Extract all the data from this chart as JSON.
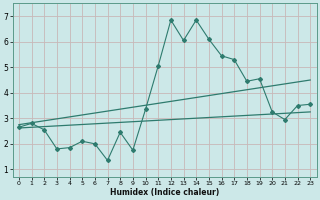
{
  "xlabel": "Humidex (Indice chaleur)",
  "bg_color": "#cce8e8",
  "grid_color": "#c8b8b8",
  "line_color": "#2e7b6e",
  "xlim": [
    -0.5,
    23.5
  ],
  "ylim": [
    0.7,
    7.5
  ],
  "xticks": [
    0,
    1,
    2,
    3,
    4,
    5,
    6,
    7,
    8,
    9,
    10,
    11,
    12,
    13,
    14,
    15,
    16,
    17,
    18,
    19,
    20,
    21,
    22,
    23
  ],
  "yticks": [
    1,
    2,
    3,
    4,
    5,
    6,
    7
  ],
  "series1_x": [
    0,
    1,
    2,
    3,
    4,
    5,
    6,
    7,
    8,
    9,
    10,
    11,
    12,
    13,
    14,
    15,
    16,
    17,
    18,
    19,
    20,
    21,
    22,
    23
  ],
  "series1_y": [
    2.65,
    2.8,
    2.55,
    1.8,
    1.85,
    2.1,
    2.0,
    1.35,
    2.45,
    1.75,
    3.35,
    5.05,
    6.85,
    6.05,
    6.85,
    6.1,
    5.45,
    5.3,
    4.45,
    4.55,
    3.25,
    2.95,
    3.5,
    3.55
  ],
  "trend1_x": [
    0,
    23
  ],
  "trend1_y": [
    2.75,
    4.5
  ],
  "trend2_x": [
    0,
    23
  ],
  "trend2_y": [
    2.62,
    3.25
  ]
}
